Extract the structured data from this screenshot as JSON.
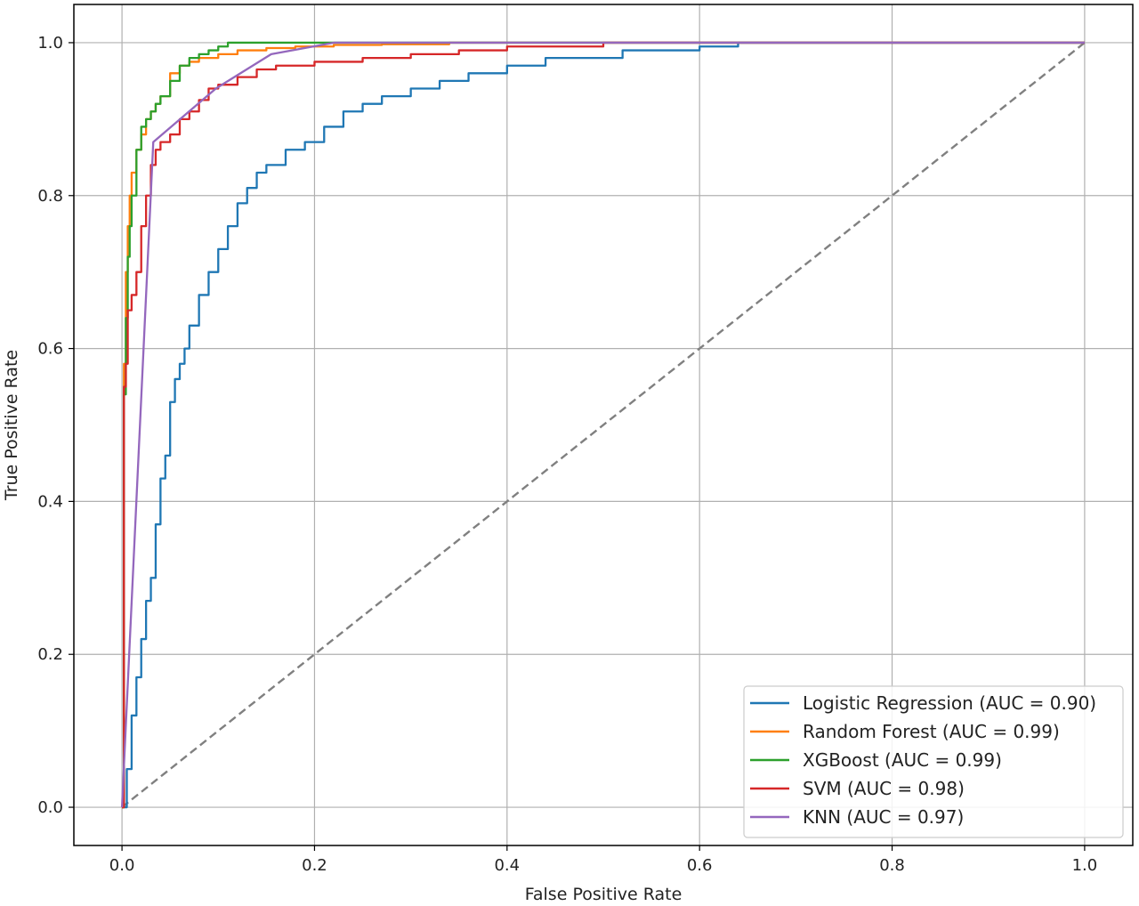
{
  "chart_data": {
    "type": "line",
    "title": "",
    "xlabel": "False Positive Rate",
    "ylabel": "True Positive Rate",
    "xlim": [
      -0.05,
      1.05
    ],
    "ylim": [
      -0.05,
      1.05
    ],
    "xticks": [
      0.0,
      0.2,
      0.4,
      0.6,
      0.8,
      1.0
    ],
    "yticks": [
      0.0,
      0.2,
      0.4,
      0.6,
      0.8,
      1.0
    ],
    "xtick_labels": [
      "0.0",
      "0.2",
      "0.4",
      "0.6",
      "0.8",
      "1.0"
    ],
    "ytick_labels": [
      "0.0",
      "0.2",
      "0.4",
      "0.6",
      "0.8",
      "1.0"
    ],
    "grid": true,
    "legend_position": "lower-right",
    "baseline": {
      "x": [
        0,
        1
      ],
      "y": [
        0,
        1
      ],
      "color": "#808080",
      "style": "dashed"
    },
    "series": [
      {
        "name": "Logistic Regression (AUC = 0.90)",
        "color": "#1f77b4",
        "step": true,
        "x": [
          0,
          0.005,
          0.01,
          0.015,
          0.02,
          0.025,
          0.03,
          0.035,
          0.04,
          0.045,
          0.05,
          0.055,
          0.06,
          0.065,
          0.07,
          0.08,
          0.09,
          0.1,
          0.11,
          0.12,
          0.13,
          0.14,
          0.15,
          0.17,
          0.19,
          0.21,
          0.23,
          0.25,
          0.27,
          0.3,
          0.33,
          0.36,
          0.4,
          0.44,
          0.48,
          0.52,
          0.56,
          0.6,
          0.64,
          0.7,
          0.8,
          0.9,
          0.97,
          1.0
        ],
        "y": [
          0,
          0.05,
          0.12,
          0.17,
          0.22,
          0.27,
          0.3,
          0.37,
          0.43,
          0.46,
          0.53,
          0.56,
          0.58,
          0.6,
          0.63,
          0.67,
          0.7,
          0.73,
          0.76,
          0.79,
          0.81,
          0.83,
          0.84,
          0.86,
          0.87,
          0.89,
          0.91,
          0.92,
          0.93,
          0.94,
          0.95,
          0.96,
          0.97,
          0.98,
          0.98,
          0.99,
          0.99,
          0.995,
          1.0,
          1.0,
          1.0,
          1.0,
          1.0,
          1.0
        ]
      },
      {
        "name": "Random Forest (AUC = 0.99)",
        "color": "#ff7f0e",
        "step": true,
        "x": [
          0,
          0.002,
          0.004,
          0.006,
          0.008,
          0.01,
          0.015,
          0.02,
          0.025,
          0.03,
          0.035,
          0.04,
          0.05,
          0.06,
          0.07,
          0.08,
          0.1,
          0.12,
          0.15,
          0.18,
          0.22,
          0.27,
          0.34,
          0.45,
          1.0
        ],
        "y": [
          0,
          0.58,
          0.7,
          0.76,
          0.8,
          0.83,
          0.86,
          0.88,
          0.9,
          0.91,
          0.92,
          0.93,
          0.96,
          0.97,
          0.975,
          0.98,
          0.985,
          0.99,
          0.993,
          0.995,
          0.997,
          0.998,
          1.0,
          1.0,
          1.0
        ]
      },
      {
        "name": "XGBoost (AUC = 0.99)",
        "color": "#2ca02c",
        "step": true,
        "x": [
          0,
          0.002,
          0.004,
          0.006,
          0.008,
          0.01,
          0.015,
          0.02,
          0.025,
          0.03,
          0.035,
          0.04,
          0.05,
          0.06,
          0.07,
          0.08,
          0.09,
          0.1,
          0.11,
          0.13,
          0.16,
          0.2,
          1.0
        ],
        "y": [
          0,
          0.54,
          0.64,
          0.72,
          0.76,
          0.8,
          0.86,
          0.89,
          0.9,
          0.91,
          0.92,
          0.93,
          0.95,
          0.97,
          0.98,
          0.985,
          0.99,
          0.995,
          1.0,
          1.0,
          1.0,
          1.0,
          1.0
        ]
      },
      {
        "name": "SVM (AUC = 0.98)",
        "color": "#d62728",
        "step": true,
        "x": [
          0,
          0.002,
          0.004,
          0.006,
          0.01,
          0.015,
          0.02,
          0.025,
          0.03,
          0.035,
          0.04,
          0.05,
          0.06,
          0.07,
          0.08,
          0.09,
          0.1,
          0.12,
          0.14,
          0.16,
          0.2,
          0.25,
          0.3,
          0.35,
          0.4,
          0.5,
          0.6,
          1.0
        ],
        "y": [
          0,
          0.55,
          0.58,
          0.65,
          0.67,
          0.7,
          0.76,
          0.8,
          0.84,
          0.86,
          0.87,
          0.88,
          0.9,
          0.91,
          0.925,
          0.94,
          0.945,
          0.955,
          0.965,
          0.97,
          0.975,
          0.98,
          0.985,
          0.99,
          0.995,
          1.0,
          1.0,
          1.0
        ]
      },
      {
        "name": "KNN (AUC = 0.97)",
        "color": "#9467bd",
        "step": false,
        "x": [
          0,
          0.0325,
          0.0975,
          0.155,
          0.22,
          1.0
        ],
        "y": [
          0,
          0.87,
          0.94,
          0.985,
          1.0,
          1.0
        ]
      }
    ]
  }
}
